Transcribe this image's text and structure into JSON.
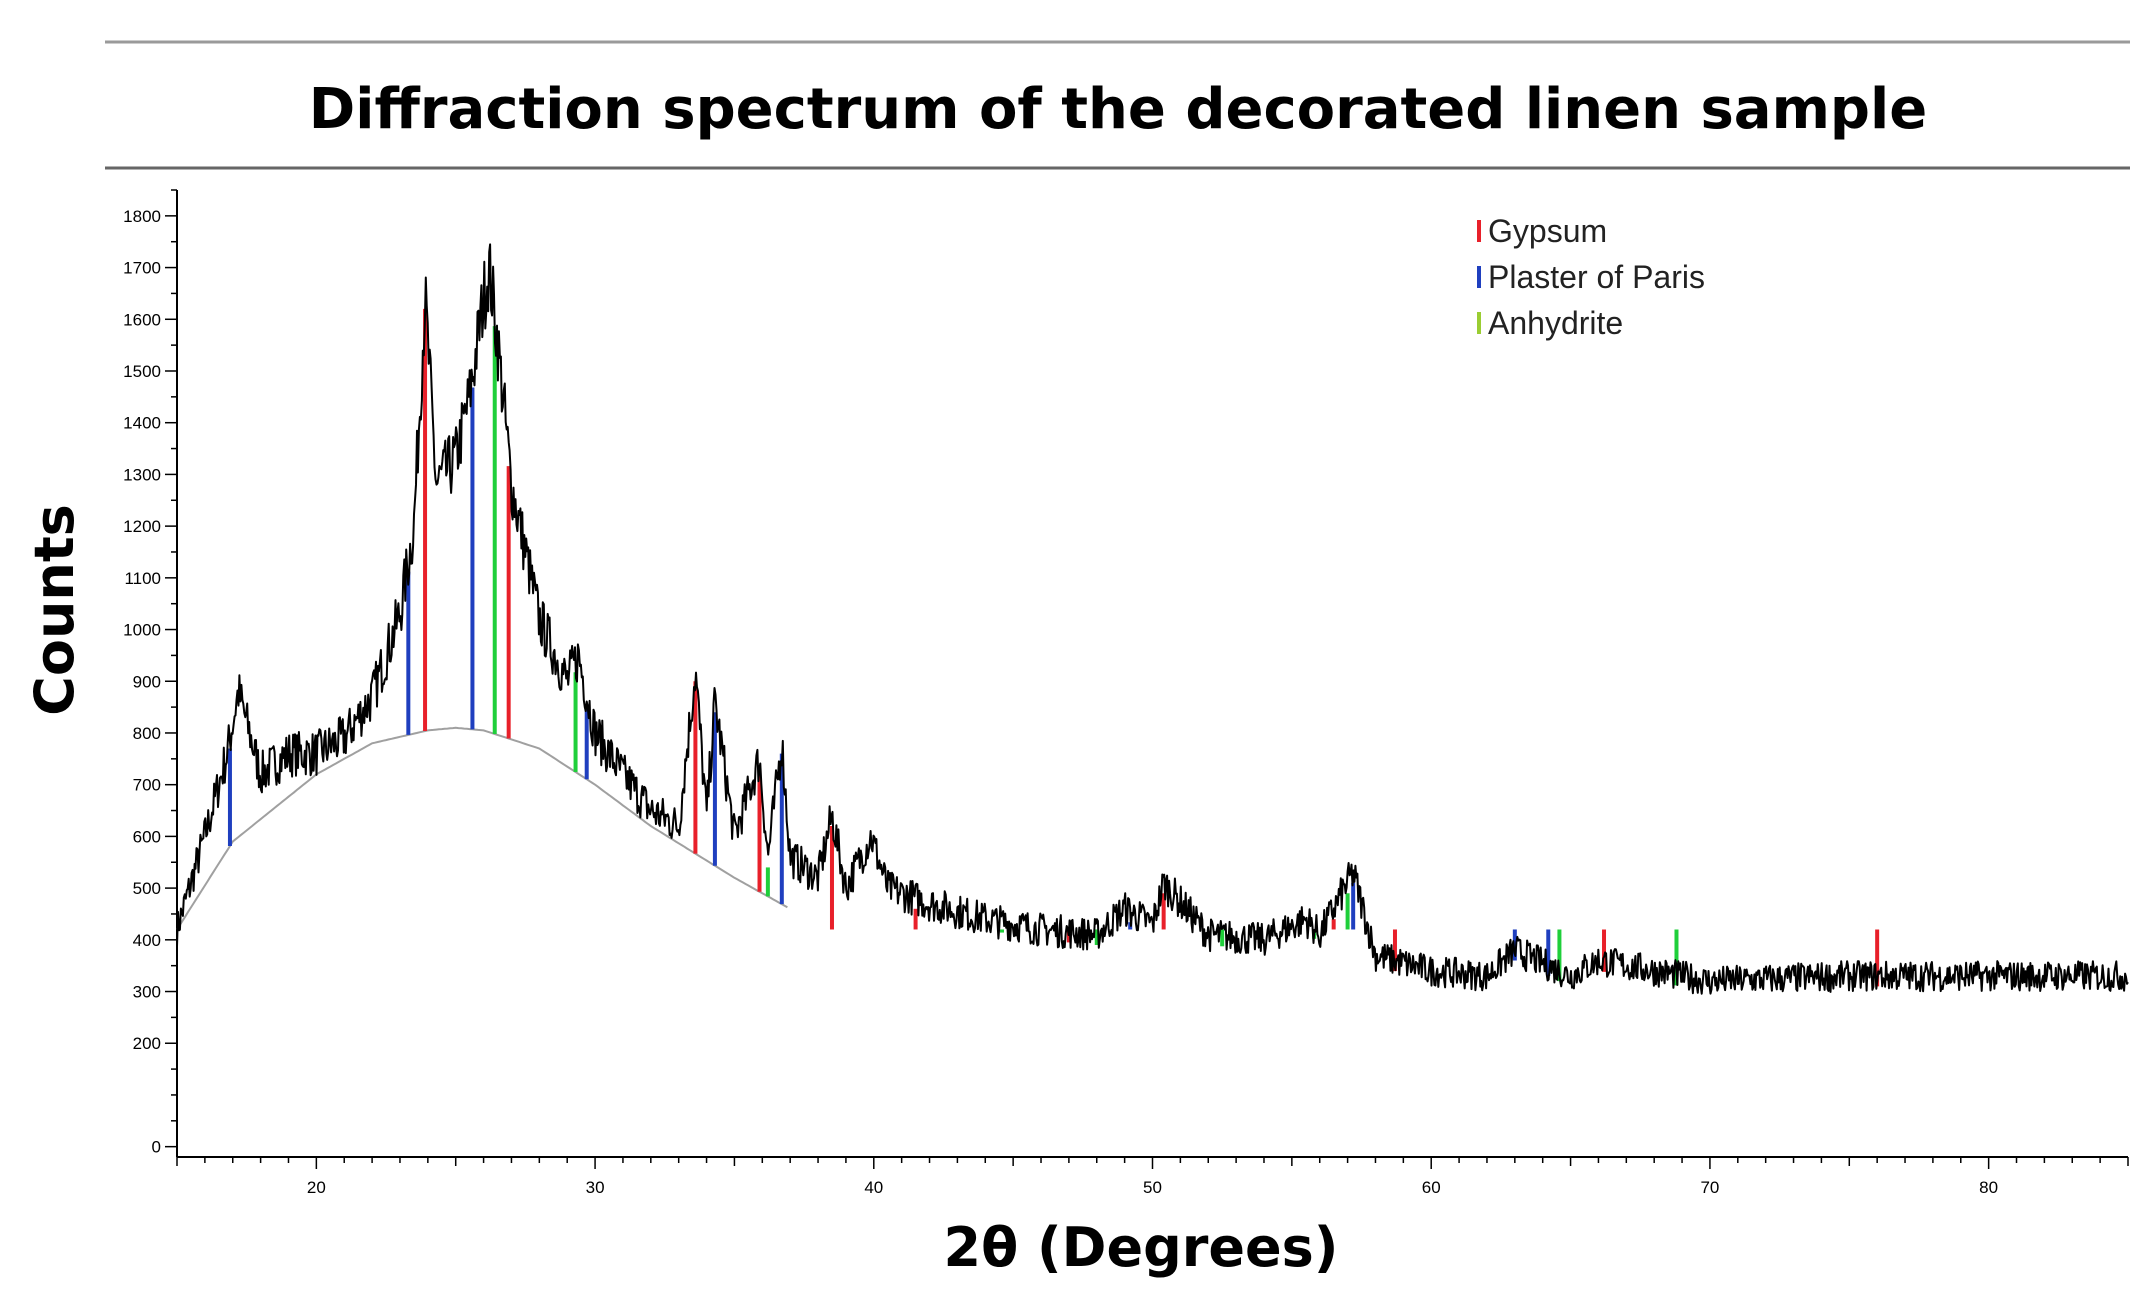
{
  "chart_data": {
    "type": "line",
    "title": "Diffraction spectrum of the decorated linen sample",
    "xlabel": "2θ (Degrees)",
    "ylabel": "Counts",
    "xlim": [
      15,
      85
    ],
    "ylim": [
      -20,
      1850
    ],
    "x_ticks": [
      20,
      30,
      40,
      50,
      60,
      70,
      80
    ],
    "y_ticks": [
      0,
      200,
      300,
      400,
      500,
      600,
      700,
      800,
      900,
      1000,
      1100,
      1200,
      1300,
      1400,
      1500,
      1600,
      1700,
      1800
    ],
    "x_tick_labels": [
      "20",
      "30",
      "40",
      "50",
      "60",
      "70",
      "80"
    ],
    "y_tick_labels": [
      "0",
      "200",
      "300",
      "400",
      "500",
      "600",
      "700",
      "800",
      "900",
      "1000",
      "1100",
      "1200",
      "1300",
      "1400",
      "1500",
      "1600",
      "1700",
      "1800"
    ],
    "grid": false,
    "legend_position": "top-right",
    "legend": [
      {
        "name": "Gypsum",
        "color": "#e8202a"
      },
      {
        "name": "Plaster of Paris",
        "color": "#1f3fbf"
      },
      {
        "name": "Anhydrite",
        "color": "#1fcf3a"
      }
    ],
    "series": [
      {
        "name": "",
        "color": "#000000",
        "x": [
          15,
          16,
          16.8,
          17.2,
          18,
          19,
          20,
          21,
          22,
          23,
          23.5,
          23.9,
          24.3,
          25,
          25.5,
          26,
          26.2,
          26.5,
          27,
          28,
          29,
          29.4,
          30,
          31,
          32,
          33,
          33.6,
          34,
          34.3,
          35,
          35.9,
          36.2,
          36.7,
          37,
          38,
          38.5,
          39,
          39.9,
          40.5,
          42,
          44,
          46,
          48,
          49,
          50,
          50.4,
          52,
          54,
          55.5,
          56,
          57.2,
          58,
          60,
          62,
          63,
          65,
          66,
          70,
          75,
          80,
          85
        ],
        "y": [
          420,
          600,
          760,
          880,
          720,
          760,
          760,
          790,
          870,
          1030,
          1200,
          1640,
          1280,
          1330,
          1450,
          1640,
          1700,
          1560,
          1280,
          1020,
          900,
          950,
          800,
          720,
          650,
          620,
          920,
          640,
          860,
          600,
          750,
          560,
          780,
          560,
          520,
          640,
          500,
          600,
          500,
          470,
          440,
          420,
          410,
          460,
          430,
          510,
          410,
          400,
          440,
          410,
          530,
          370,
          340,
          330,
          380,
          330,
          360,
          320,
          330,
          330,
          330
        ]
      },
      {
        "name": "",
        "color": "#a0a0a0",
        "x": [
          15,
          17,
          20,
          22,
          24,
          25,
          26,
          28,
          30,
          32,
          35,
          37
        ],
        "y": [
          420,
          590,
          720,
          780,
          805,
          810,
          805,
          770,
          700,
          620,
          520,
          460
        ]
      }
    ],
    "reference_peaks": {
      "gypsum": [
        23.9,
        26.9,
        33.6,
        35.9,
        38.5,
        41.5,
        47,
        50.4,
        55.5,
        56.5,
        58.7,
        66.2,
        76
      ],
      "plaster_of_paris": [
        16.9,
        23.3,
        25.6,
        29.7,
        34.3,
        36.7,
        49.2,
        57.2,
        63,
        64.2
      ],
      "anhydrite": [
        26.4,
        29.3,
        36.2,
        44.6,
        48,
        52.5,
        55.8,
        57,
        64.6,
        68.8
      ]
    }
  }
}
